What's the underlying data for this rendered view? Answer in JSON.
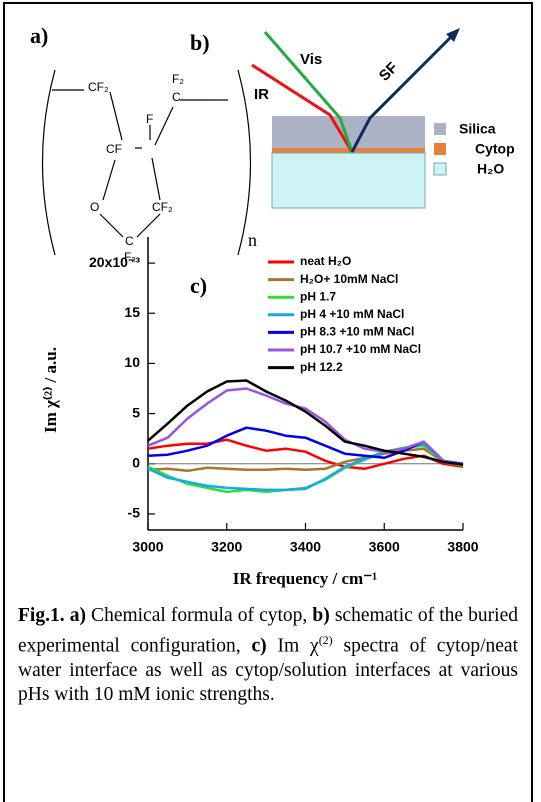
{
  "panel_labels": {
    "a": "a)",
    "b": "b)"
  },
  "formula": {
    "atoms": [
      "CF₂",
      "CF",
      "F",
      "F₂",
      "C",
      "O",
      "CF₂",
      "C",
      "F₂"
    ],
    "repeat": "n"
  },
  "schematic": {
    "beams": [
      "Vis",
      "IR",
      "SF"
    ],
    "legend": [
      "Silica",
      "Cytop",
      "H₂O"
    ]
  },
  "chart_data": {
    "type": "line",
    "panel_label": "c)",
    "x_label": "IR frequency / cm⁻¹",
    "y_label": "Im χ⁽²⁾ / a.u.",
    "xlim": [
      3000,
      3800
    ],
    "xticks": [
      3000,
      3200,
      3400,
      3600,
      3800
    ],
    "ylim": [
      -6.6,
      22.6
    ],
    "yticks": [
      -5,
      0,
      5,
      10,
      15,
      {
        "value": 20,
        "label": "20x10⁻³"
      }
    ],
    "x": [
      3000,
      3050,
      3100,
      3150,
      3200,
      3250,
      3300,
      3350,
      3400,
      3450,
      3500,
      3550,
      3600,
      3650,
      3700,
      3750,
      3800
    ],
    "series": [
      {
        "name": "neat H₂O",
        "color": "#ff0000",
        "values": [
          1.5,
          1.8,
          2.0,
          2.0,
          2.4,
          1.8,
          1.3,
          1.5,
          1.2,
          0.3,
          -0.3,
          -0.5,
          0,
          0.5,
          0.8,
          0,
          -0.3
        ]
      },
      {
        "name": "H₂O+ 10mM NaCl",
        "color": "#a8742e",
        "values": [
          -0.6,
          -0.5,
          -0.7,
          -0.4,
          -0.5,
          -0.6,
          -0.6,
          -0.5,
          -0.6,
          -0.5,
          0.2,
          0.6,
          1.0,
          1.3,
          1.5,
          0.2,
          -0.2
        ]
      },
      {
        "name": "pH 1.7",
        "color": "#33dd33",
        "values": [
          -0.3,
          -1.2,
          -2.0,
          -2.4,
          -2.8,
          -2.6,
          -2.8,
          -2.6,
          -2.4,
          -1.6,
          -0.4,
          0.4,
          1.2,
          1.6,
          1.8,
          0.2,
          -0.2
        ]
      },
      {
        "name": "pH 4 +10 mM NaCl",
        "color": "#11aaee",
        "values": [
          -0.5,
          -1.4,
          -1.8,
          -2.2,
          -2.4,
          -2.5,
          -2.6,
          -2.6,
          -2.5,
          -1.5,
          -0.3,
          0.5,
          1.2,
          1.5,
          2.0,
          0.3,
          -0.1
        ]
      },
      {
        "name": "pH 8.3 +10 mM NaCl",
        "color": "#0000ee",
        "values": [
          0.8,
          0.9,
          1.3,
          1.8,
          2.8,
          3.6,
          3.3,
          2.8,
          2.6,
          1.8,
          1.0,
          0.8,
          0.6,
          1.3,
          2.2,
          0.3,
          0
        ]
      },
      {
        "name": "pH 10.7 +10 mM NaCl",
        "color": "#9955dd",
        "values": [
          1.8,
          2.6,
          4.5,
          6.0,
          7.3,
          7.5,
          6.8,
          6.0,
          5.5,
          4.2,
          2.4,
          1.5,
          1.2,
          1.5,
          2.2,
          0.3,
          -0.1
        ]
      },
      {
        "name": "pH 12.2",
        "color": "#000000",
        "values": [
          2.3,
          4.0,
          5.8,
          7.2,
          8.2,
          8.3,
          7.2,
          6.3,
          5.2,
          3.8,
          2.2,
          1.8,
          1.3,
          1.0,
          0.7,
          0.2,
          -0.1
        ]
      }
    ]
  },
  "caption": [
    "Fig.1.",
    " a)",
    " Chemical formula of cytop,",
    " b)",
    " schematic of the buried experimental configuration,",
    " c)",
    " Im χ",
    "(2)",
    " spectra of cytop/neat water interface as well as cytop/solution interfaces at various pHs with 10 mM ionic strengths."
  ]
}
